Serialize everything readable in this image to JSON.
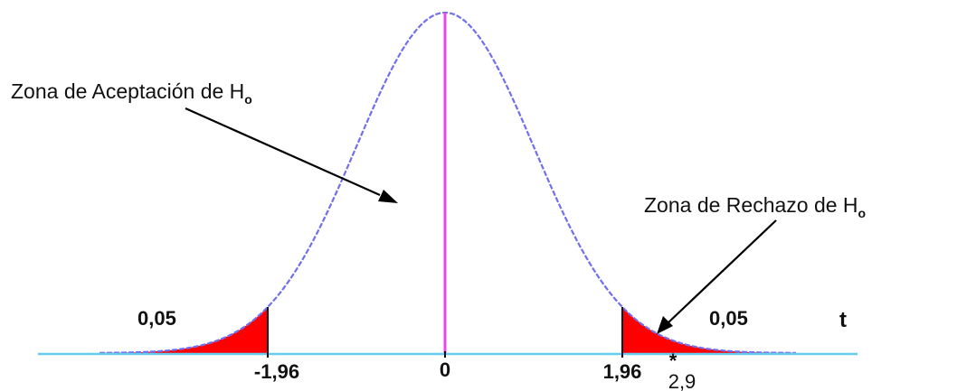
{
  "annotations": {
    "acceptance_zone": "Zona de Aceptación de H",
    "rejection_zone": "Zona de Rechazo de H",
    "hypothesis_subscript": "o"
  },
  "tail_areas": {
    "left": "0,05",
    "right": "0,05"
  },
  "axis": {
    "variable": "t",
    "ticks": [
      {
        "value": -1.96,
        "label": "-1,96"
      },
      {
        "value": 0,
        "label": "0"
      },
      {
        "value": 1.96,
        "label": "1,96"
      }
    ],
    "observed": {
      "value": 2.9,
      "label": "2,9",
      "marker": "*"
    }
  },
  "colors": {
    "curve": "#7070ee",
    "center_line": "#ee44ee",
    "axis": "#66ccee",
    "rejection_fill": "#ff0000",
    "arrow": "#000000"
  },
  "chart_data": {
    "type": "area",
    "distribution": "normal",
    "critical_values": [
      -1.96,
      1.96
    ],
    "tail_probability": 0.05,
    "observed_statistic": 2.9
  }
}
